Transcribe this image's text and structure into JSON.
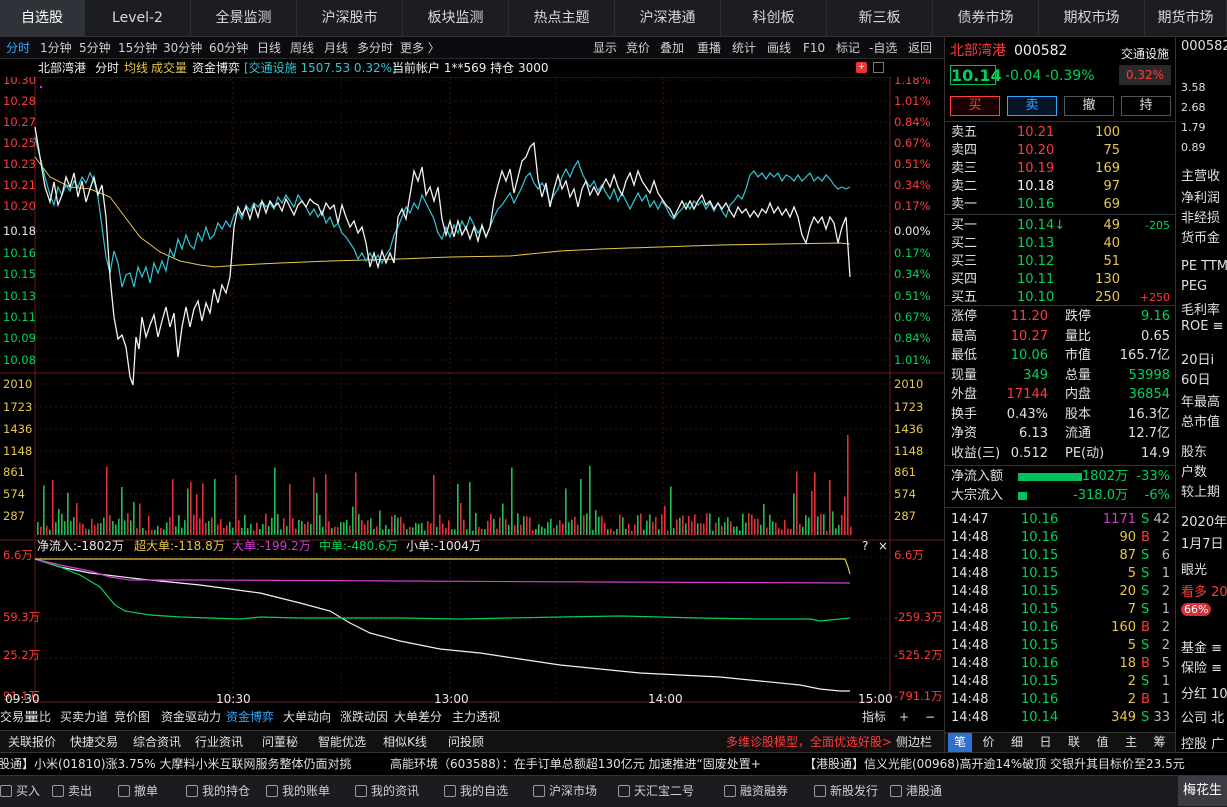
{
  "nav": {
    "tabs": [
      "自选股",
      "Level-2",
      "全景监测",
      "沪深股市",
      "板块监测",
      "热点主题",
      "沪深港通",
      "科创板",
      "新三板",
      "债券市场",
      "期权市场",
      "期货市场"
    ],
    "active": 0
  },
  "subbar": {
    "periods": [
      "分时",
      "1分钟",
      "5分钟",
      "15分钟",
      "30分钟",
      "60分钟",
      "日线",
      "周线",
      "月线",
      "多分时",
      "更多 〉"
    ],
    "active_period": 0,
    "tools": [
      "显示",
      "竞价",
      "叠加",
      "重播",
      "统计",
      "画线",
      "F10",
      "标记",
      "-自选",
      "返回"
    ]
  },
  "chart_header": {
    "name": "北部湾港",
    "mode": "分时",
    "avg_label": "均线",
    "vol_label": "成交量",
    "fund_label": "资金博弈",
    "index_info": "[交通设施 1507.53 0.32%]",
    "account": "当前帐户 1**569 持仓 3000"
  },
  "price_chart": {
    "prices": [
      "10.30",
      "10.28",
      "10.27",
      "10.25",
      "10.23",
      "10.21",
      "10.20",
      "10.18",
      "10.16",
      "10.15",
      "10.13",
      "10.11",
      "10.09",
      "10.08"
    ],
    "pcts": [
      "1.18%",
      "1.01%",
      "0.84%",
      "0.67%",
      "0.51%",
      "0.34%",
      "0.17%",
      "0.00%",
      "0.17%",
      "0.34%",
      "0.51%",
      "0.67%",
      "0.84%",
      "1.01%"
    ]
  },
  "volume_chart": {
    "levels": [
      "2010",
      "1723",
      "1436",
      "1148",
      "861",
      "574",
      "287"
    ]
  },
  "fund_chart": {
    "net": "净流入:-1802万",
    "super": "超大单:-118.8万",
    "big": "大单:-199.2万",
    "mid": "中单:-480.6万",
    "small": "小单:-1004万",
    "left_levels": [
      "6.6万",
      "59.3万",
      "25.2万",
      "91.1万"
    ],
    "right_levels": [
      "6.6万",
      "-259.3万",
      "-525.2万",
      "-791.1万"
    ]
  },
  "time_axis": [
    "09:30",
    "10:30",
    "13:00",
    "14:00",
    "15:00"
  ],
  "bottom_tabs": [
    "交易量",
    "量比",
    "买卖力道",
    "竞价图",
    "资金驱动力",
    "资金博弈",
    "大单动向",
    "涨跌动因",
    "大单差分",
    "主力透视"
  ],
  "bottom_tabs_active": 5,
  "bottom_right": [
    "指标",
    "+",
    "−"
  ],
  "links": [
    "关联报价",
    "快捷交易",
    "综合资讯",
    "行业资讯",
    "问董秘",
    "智能优选",
    "相似K线",
    "问投顾"
  ],
  "promo": "多维诊股模型，全面优选好股>",
  "side_toggle": "侧边栏",
  "quote": {
    "name": "北部湾港",
    "code": "000582",
    "sector": "交通设施",
    "price": "10.14",
    "change": "-0.04",
    "change_pct": "-0.39%",
    "sector_pct": "0.32%",
    "buttons": [
      "买",
      "卖",
      "撤",
      "持"
    ],
    "asks": [
      {
        "label": "卖五",
        "price": "10.21",
        "vol": "100"
      },
      {
        "label": "卖四",
        "price": "10.20",
        "vol": "75"
      },
      {
        "label": "卖三",
        "price": "10.19",
        "vol": "169"
      },
      {
        "label": "卖二",
        "price": "10.18",
        "vol": "97"
      },
      {
        "label": "卖一",
        "price": "10.16",
        "vol": "69"
      }
    ],
    "bids": [
      {
        "label": "买一",
        "price": "10.14↓",
        "vol": "49",
        "delta": "-205"
      },
      {
        "label": "买二",
        "price": "10.13",
        "vol": "40",
        "delta": ""
      },
      {
        "label": "买三",
        "price": "10.12",
        "vol": "51",
        "delta": ""
      },
      {
        "label": "买四",
        "price": "10.11",
        "vol": "130",
        "delta": ""
      },
      {
        "label": "买五",
        "price": "10.10",
        "vol": "250",
        "delta": "+250"
      }
    ],
    "stats": [
      {
        "l1": "涨停",
        "v1": "11.20",
        "l2": "跌停",
        "v2": "9.16"
      },
      {
        "l1": "最高",
        "v1": "10.27",
        "l2": "量比",
        "v2": "0.65"
      },
      {
        "l1": "最低",
        "v1": "10.06",
        "l2": "市值",
        "v2": "165.7亿"
      },
      {
        "l1": "现量",
        "v1": "349",
        "l2": "总量",
        "v2": "53998"
      },
      {
        "l1": "外盘",
        "v1": "17144",
        "l2": "内盘",
        "v2": "36854"
      },
      {
        "l1": "换手",
        "v1": "0.43%",
        "l2": "股本",
        "v2": "16.3亿"
      },
      {
        "l1": "净资",
        "v1": "6.13",
        "l2": "流通",
        "v2": "12.7亿"
      },
      {
        "l1": "收益(三)",
        "v1": "0.512",
        "l2": "PE(动)",
        "v2": "14.9"
      }
    ],
    "flows": [
      {
        "label": "净流入额",
        "value": "-1802万",
        "pct": "-33%"
      },
      {
        "label": "大宗流入",
        "value": "-318.0万",
        "pct": "-6%"
      }
    ],
    "ticks": [
      {
        "t": "14:47",
        "p": "10.16",
        "v": "1171",
        "s": "S",
        "n": "42"
      },
      {
        "t": "14:48",
        "p": "10.16",
        "v": "90",
        "s": "B",
        "n": "2"
      },
      {
        "t": "14:48",
        "p": "10.15",
        "v": "87",
        "s": "S",
        "n": "6"
      },
      {
        "t": "14:48",
        "p": "10.15",
        "v": "5",
        "s": "S",
        "n": "1"
      },
      {
        "t": "14:48",
        "p": "10.15",
        "v": "20",
        "s": "S",
        "n": "2"
      },
      {
        "t": "14:48",
        "p": "10.15",
        "v": "7",
        "s": "S",
        "n": "1"
      },
      {
        "t": "14:48",
        "p": "10.16",
        "v": "160",
        "s": "B",
        "n": "2"
      },
      {
        "t": "14:48",
        "p": "10.15",
        "v": "5",
        "s": "S",
        "n": "2"
      },
      {
        "t": "14:48",
        "p": "10.16",
        "v": "18",
        "s": "B",
        "n": "5"
      },
      {
        "t": "14:48",
        "p": "10.15",
        "v": "2",
        "s": "S",
        "n": "1"
      },
      {
        "t": "14:48",
        "p": "10.16",
        "v": "2",
        "s": "B",
        "n": "1"
      },
      {
        "t": "14:48",
        "p": "10.14",
        "v": "349",
        "s": "S",
        "n": "33"
      }
    ],
    "tabs": [
      "笔",
      "价",
      "细",
      "日",
      "联",
      "值",
      "主",
      "筹"
    ]
  },
  "far_right": [
    "000582",
    "3.58",
    "2.68",
    "1.79",
    "0.89",
    "主营收",
    "净利润",
    "非经损",
    "货币金",
    "PE TTM",
    "PEG",
    "毛利率",
    "ROE ≡",
    "20日i",
    "60日",
    "年最高",
    "总市值",
    "股东",
    "户数",
    "较上期",
    "2020年",
    "1月7日",
    "眼光",
    "看多 20,",
    "66%",
    "基金 ≡",
    "保险 ≡",
    "分红 10",
    "公司 北",
    "控股 广"
  ],
  "news": [
    "股通】小米(01810)涨3.75% 大摩料小米互联网服务整体仍面对挑",
    "高能环境（603588）：在手订单总额超130亿元 加速推进“固废处置+",
    "【港股通】信义光能(00968)高开逾14%破顶 交银升其目标价至23.5元"
  ],
  "toolbar": [
    "买入",
    "卖出",
    "撤单",
    "我的持仓",
    "我的账单",
    "我的资讯",
    "我的自选",
    "沪深市场",
    "天汇宝二号",
    "融资融券",
    "新股发行",
    "港股通"
  ],
  "toolbar_right": "梅花生"
}
